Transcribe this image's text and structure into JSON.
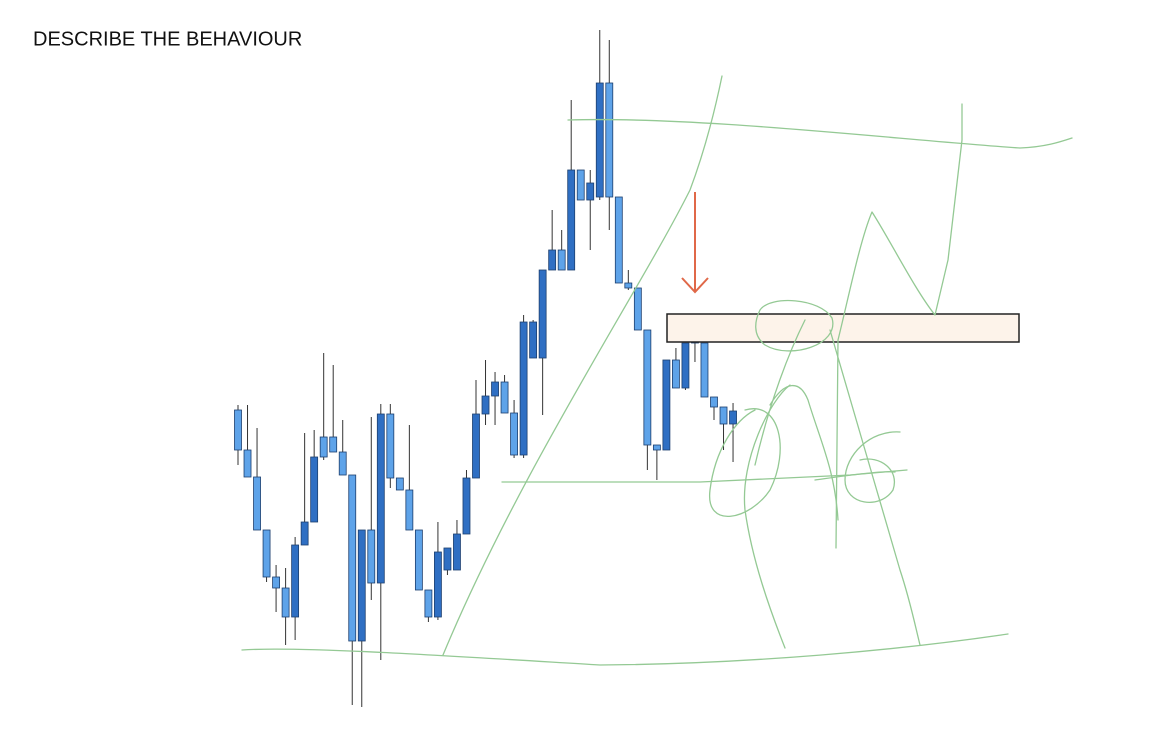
{
  "chart_data": {
    "type": "candlestick",
    "title": "DESCRIBE THE BEHAVIOUR",
    "ylim": [
      0,
      700
    ],
    "up_color": "#2f6fc3",
    "down_color": "#5ea3e9",
    "open": [
      310,
      270,
      243,
      190,
      143,
      132,
      103,
      175,
      198,
      283,
      283,
      268,
      245,
      79,
      190,
      137,
      306,
      242,
      230,
      190,
      130,
      103,
      150,
      150,
      186,
      242,
      306,
      324,
      338,
      307,
      265,
      362,
      362,
      450,
      470,
      450,
      550,
      520,
      523,
      637,
      523,
      437,
      432,
      390,
      275,
      270,
      360,
      332,
      377,
      377,
      323,
      313,
      296
    ],
    "high": [
      315,
      315,
      292,
      190,
      155,
      152,
      183,
      287,
      290,
      367,
      355,
      300,
      245,
      190,
      303,
      316,
      316,
      242,
      295,
      190,
      130,
      198,
      172,
      200,
      250,
      340,
      360,
      348,
      345,
      320,
      405,
      400,
      450,
      510,
      490,
      620,
      550,
      550,
      690,
      680,
      523,
      450,
      432,
      390,
      275,
      360,
      372,
      377,
      402,
      377,
      323,
      313,
      317
    ],
    "low": [
      255,
      243,
      190,
      138,
      108,
      75,
      80,
      175,
      198,
      260,
      268,
      245,
      15,
      13,
      120,
      60,
      232,
      230,
      190,
      130,
      98,
      100,
      145,
      150,
      186,
      242,
      295,
      295,
      307,
      262,
      262,
      362,
      305,
      450,
      450,
      450,
      520,
      470,
      520,
      490,
      437,
      430,
      390,
      250,
      240,
      270,
      332,
      330,
      358,
      323,
      300,
      270,
      258
    ],
    "close": [
      270,
      243,
      190,
      143,
      132,
      103,
      175,
      198,
      263,
      263,
      268,
      245,
      79,
      190,
      137,
      306,
      242,
      230,
      190,
      130,
      103,
      168,
      172,
      186,
      242,
      306,
      324,
      338,
      307,
      265,
      398,
      398,
      450,
      470,
      450,
      550,
      520,
      537,
      637,
      523,
      437,
      432,
      390,
      275,
      270,
      360,
      332,
      377,
      379,
      323,
      313,
      296,
      309
    ]
  }
}
